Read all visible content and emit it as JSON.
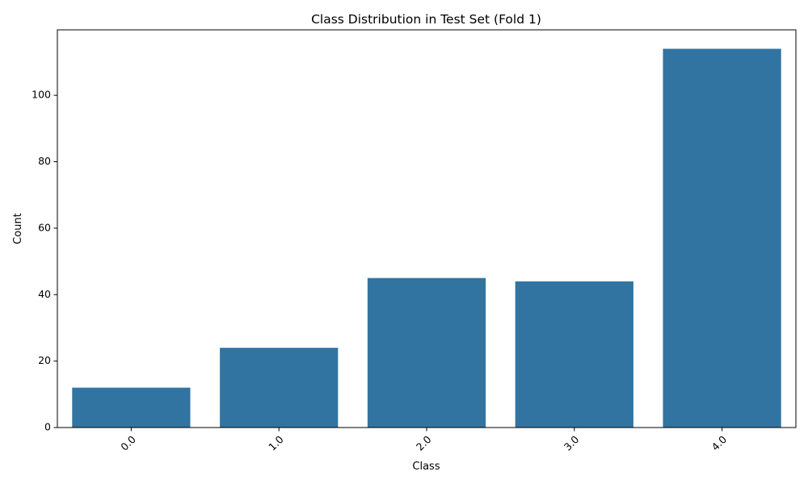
{
  "chart_data": {
    "type": "bar",
    "title": "Class Distribution in Test Set (Fold 1)",
    "xlabel": "Class",
    "ylabel": "Count",
    "categories": [
      "0.0",
      "1.0",
      "2.0",
      "3.0",
      "4.0"
    ],
    "values": [
      12,
      24,
      45,
      44,
      114
    ],
    "ylim": [
      0,
      119.7
    ],
    "yticks": [
      0,
      20,
      40,
      60,
      80,
      100
    ],
    "grid": false,
    "legend": "none",
    "x_tick_rotation_deg": 45,
    "bar_color": "#3274a1"
  }
}
